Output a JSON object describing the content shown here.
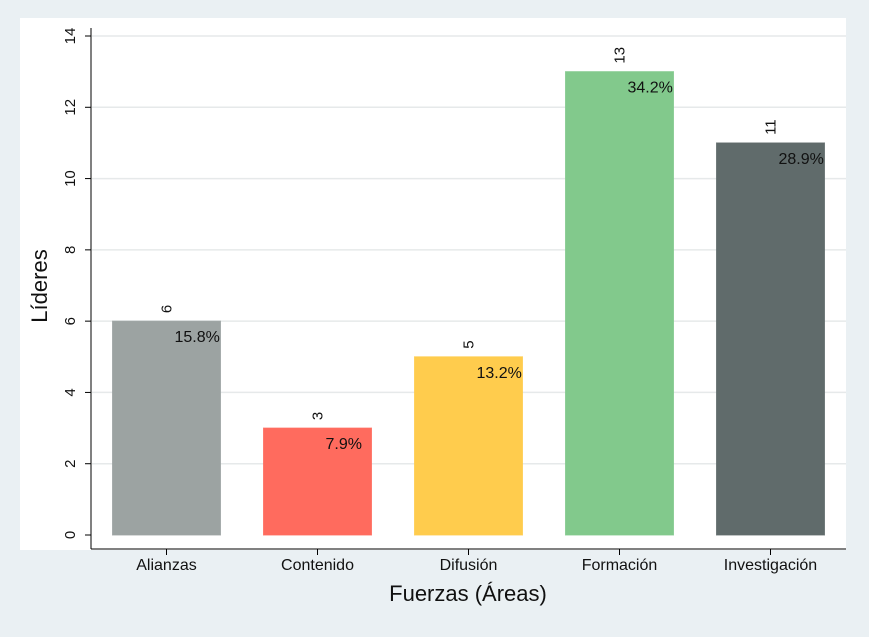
{
  "chart_data": {
    "type": "bar",
    "title": "",
    "xlabel": "Fuerzas (Áreas)",
    "ylabel": "Líderes",
    "ylim": [
      0,
      14
    ],
    "yticks": [
      0,
      2,
      4,
      6,
      8,
      10,
      12,
      14
    ],
    "grid": true,
    "legend": "none",
    "categories": [
      "Alianzas",
      "Contenido",
      "Difusión",
      "Formación",
      "Investigación"
    ],
    "values": [
      6,
      3,
      5,
      13,
      11
    ],
    "value_labels": [
      "6",
      "3",
      "5",
      "13",
      "11"
    ],
    "percent_labels": [
      "15.8%",
      "7.9%",
      "13.2%",
      "34.2%",
      "28.9%"
    ],
    "colors": [
      "#9ca3a2",
      "#ff6b5e",
      "#ffcc4d",
      "#82c98c",
      "#606b6b"
    ],
    "background_color": "#eaf0f3",
    "plot_background_color": "#ffffff"
  }
}
